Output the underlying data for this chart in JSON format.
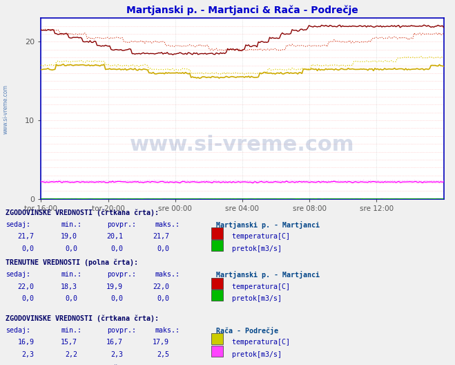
{
  "title": "Martjanski p. - Martjanci & Rača - Podrečje",
  "title_color": "#0000cc",
  "figsize": [
    6.59,
    5.28
  ],
  "dpi": 100,
  "ylim": [
    0,
    23
  ],
  "x_labels": [
    "tor 16:00",
    "tor 20:00",
    "sre 00:00",
    "sre 04:00",
    "sre 08:00",
    "sre 12:00"
  ],
  "n_points": 288,
  "mart_hist": [
    21.7,
    21.5,
    21.3,
    21.1,
    20.9,
    20.8,
    20.6,
    20.5,
    20.4,
    20.3,
    20.2,
    20.1,
    20.0,
    19.9,
    19.8,
    19.7,
    19.6,
    19.5,
    19.4,
    19.3,
    19.2,
    19.1,
    19.0,
    19.0,
    19.0,
    19.0,
    19.0,
    19.1,
    19.2,
    19.3,
    19.4,
    19.5,
    19.6,
    19.7,
    19.8,
    19.9,
    20.0,
    20.1,
    20.2,
    20.3,
    20.4,
    20.5,
    20.6,
    20.7,
    20.8,
    20.9,
    21.0,
    21.2
  ],
  "mart_curr": [
    21.7,
    21.4,
    21.1,
    20.8,
    20.5,
    20.2,
    19.9,
    19.6,
    19.3,
    19.0,
    18.8,
    18.7,
    18.6,
    18.5,
    18.4,
    18.3,
    18.3,
    18.3,
    18.3,
    18.4,
    18.5,
    18.6,
    18.8,
    19.0,
    19.3,
    19.6,
    20.0,
    20.4,
    20.8,
    21.2,
    21.5,
    21.7,
    21.9,
    22.0,
    22.0,
    22.0,
    22.0,
    22.0,
    22.0,
    22.0,
    22.0,
    22.0,
    22.0,
    22.0,
    22.0,
    22.0,
    22.0,
    22.0
  ],
  "pod_hist": [
    16.9,
    17.1,
    17.3,
    17.5,
    17.6,
    17.5,
    17.4,
    17.3,
    17.2,
    17.1,
    17.0,
    16.9,
    16.8,
    16.7,
    16.6,
    16.5,
    16.4,
    16.3,
    16.2,
    16.1,
    16.0,
    16.0,
    16.0,
    16.0,
    16.0,
    16.1,
    16.2,
    16.3,
    16.4,
    16.5,
    16.6,
    16.7,
    16.8,
    16.9,
    17.0,
    17.1,
    17.2,
    17.3,
    17.4,
    17.5,
    17.6,
    17.7,
    17.8,
    17.9,
    17.9,
    17.9,
    17.9,
    17.9
  ],
  "pod_curr": [
    16.4,
    16.6,
    16.8,
    17.0,
    17.1,
    17.0,
    16.9,
    16.8,
    16.7,
    16.6,
    16.5,
    16.4,
    16.3,
    16.2,
    16.1,
    16.0,
    15.9,
    15.8,
    15.7,
    15.6,
    15.5,
    15.5,
    15.5,
    15.5,
    15.6,
    15.7,
    15.8,
    15.9,
    16.0,
    16.1,
    16.2,
    16.3,
    16.4,
    16.5,
    16.6,
    16.7,
    16.7,
    16.7,
    16.7,
    16.7,
    16.7,
    16.7,
    16.7,
    16.7,
    16.7,
    16.7,
    16.8,
    16.8
  ],
  "pod_flow_hist": 2.3,
  "pod_flow_curr": 2.15,
  "mart_temp_color_hist": "#cc3300",
  "mart_temp_color_curr": "#880000",
  "pod_temp_color": "#ddcc00",
  "pod_flow_color_hist": "#ff44ff",
  "pod_flow_color_curr": "#ff00ff",
  "green_color": "#00cc00",
  "bg_color": "#f0f0f0",
  "plot_bg_color": "#ffffff",
  "axis_color": "#0000bb",
  "grid_h_color": "#ffbbbb",
  "grid_v_color": "#cccccc",
  "watermark_color": "#1a3a8a",
  "col_header": "#000066",
  "col_label": "#0000aa",
  "col_station": "#004488"
}
